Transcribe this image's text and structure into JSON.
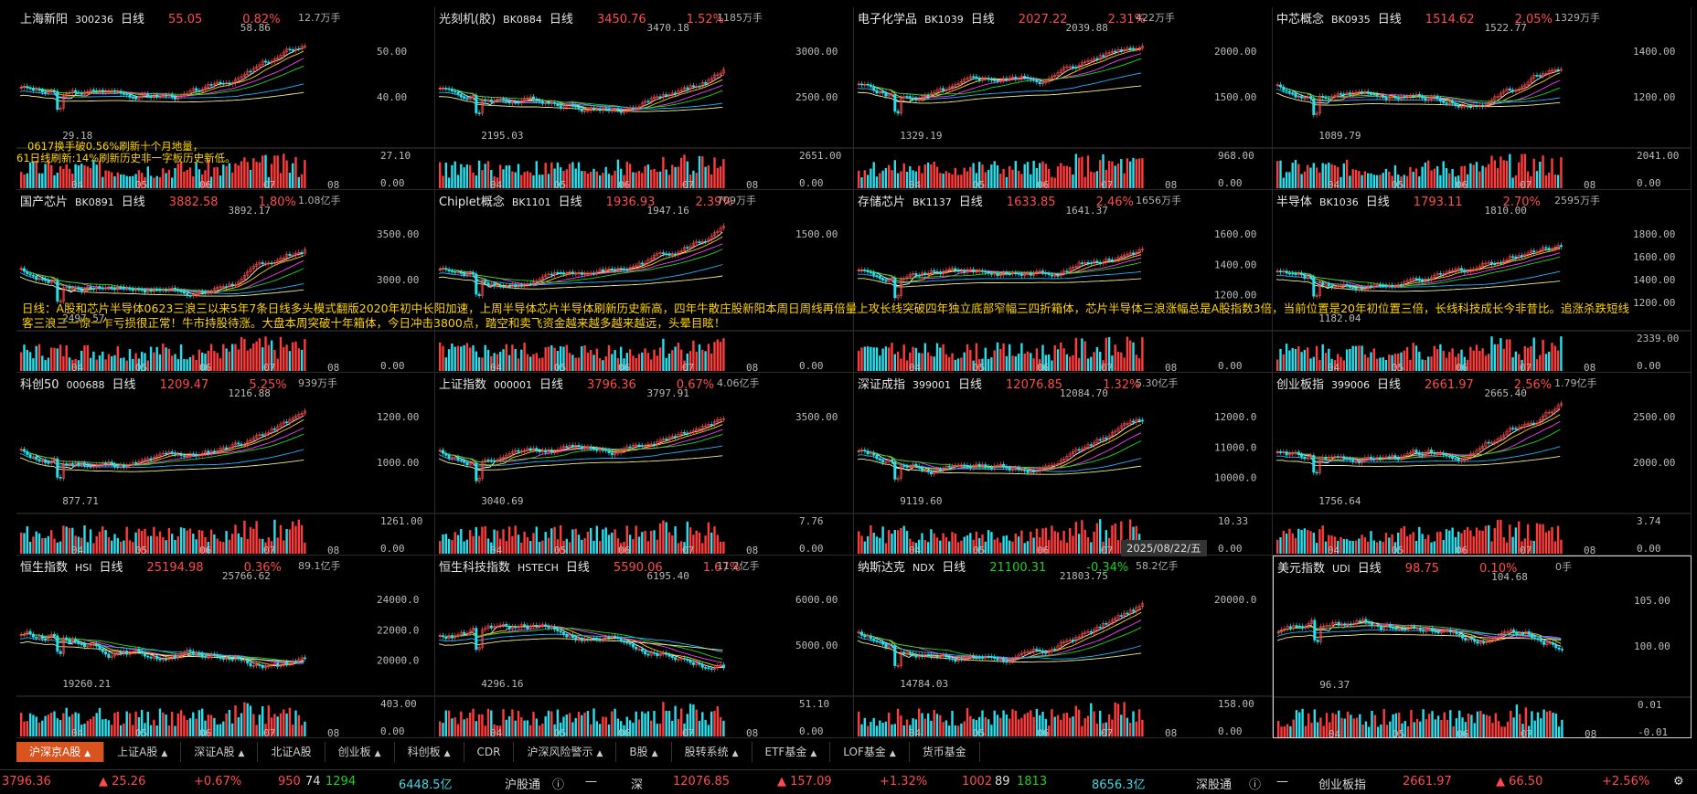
{
  "panels": [
    {
      "name": "上海新阳",
      "code": "300236",
      "period": "日线",
      "price": "55.05",
      "change": "0.82%",
      "vol": "12.7万手",
      "yticks": [
        "50.00",
        "40.00"
      ],
      "vticks": [
        "27.10",
        "0.00"
      ],
      "high_label": "58.86",
      "low_label": "29.18",
      "up": true
    },
    {
      "name": "光刻机(胶)",
      "code": "BK0884",
      "period": "日线",
      "price": "3450.76",
      "change": "1.52%",
      "vol": "1185万手",
      "yticks": [
        "3000.00",
        "2500.00"
      ],
      "vticks": [
        "2651.00",
        "0.00"
      ],
      "high_label": "3470.18",
      "low_label": "2195.03",
      "up": true
    },
    {
      "name": "电子化学品",
      "code": "BK1039",
      "period": "日线",
      "price": "2027.22",
      "change": "2.31%",
      "vol": "422万手",
      "yticks": [
        "2000.00",
        "1500.00"
      ],
      "vticks": [
        "968.00",
        "0.00"
      ],
      "high_label": "2039.88",
      "low_label": "1329.19",
      "up": true
    },
    {
      "name": "中芯概念",
      "code": "BK0935",
      "period": "日线",
      "price": "1514.62",
      "change": "2.05%",
      "vol": "1329万手",
      "yticks": [
        "1400.00",
        "1200.00"
      ],
      "vticks": [
        "2041.00",
        "0.00"
      ],
      "high_label": "1522.77",
      "low_label": "1089.79",
      "up": true
    },
    {
      "name": "国产芯片",
      "code": "BK0891",
      "period": "日线",
      "price": "3882.58",
      "change": "1.80%",
      "vol": "1.08亿手",
      "yticks": [
        "3500.00",
        "3000.00"
      ],
      "vticks": [
        "",
        "0.00"
      ],
      "high_label": "3892.17",
      "low_label": "2497.57",
      "up": true
    },
    {
      "name": "Chiplet概念",
      "code": "BK1101",
      "period": "日线",
      "price": "1936.93",
      "change": "2.39%",
      "vol": "709万手",
      "yticks": [
        "1500.00"
      ],
      "vticks": [
        "",
        "0.00"
      ],
      "high_label": "1947.16",
      "low_label": "",
      "up": true
    },
    {
      "name": "存储芯片",
      "code": "BK1137",
      "period": "日线",
      "price": "1633.85",
      "change": "2.46%",
      "vol": "1656万手",
      "yticks": [
        "1600.00",
        "1400.00",
        "1200.00"
      ],
      "vticks": [
        "",
        "0.00"
      ],
      "high_label": "1641.37",
      "low_label": "",
      "up": true
    },
    {
      "name": "半导体",
      "code": "BK1036",
      "period": "日线",
      "price": "1793.11",
      "change": "2.70%",
      "vol": "2595万手",
      "yticks": [
        "1800.00",
        "1600.00",
        "1400.00",
        "1200.00"
      ],
      "vticks": [
        "2339.00",
        "0.00"
      ],
      "high_label": "1810.00",
      "low_label": "1182.04",
      "up": true
    },
    {
      "name": "科创50",
      "code": "000688",
      "period": "日线",
      "price": "1209.47",
      "change": "5.25%",
      "vol": "939万手",
      "yticks": [
        "1200.00",
        "1000.00"
      ],
      "vticks": [
        "1261.00",
        "0.00"
      ],
      "high_label": "1216.88",
      "low_label": "877.71",
      "up": true
    },
    {
      "name": "上证指数",
      "code": "000001",
      "period": "日线",
      "price": "3796.36",
      "change": "0.67%",
      "vol": "4.06亿手",
      "yticks": [
        "3500.00"
      ],
      "vticks": [
        "7.76",
        "0.00"
      ],
      "high_label": "3797.91",
      "low_label": "3040.69",
      "up": true
    },
    {
      "name": "深证成指",
      "code": "399001",
      "period": "日线",
      "price": "12076.85",
      "change": "1.32%",
      "vol": "5.30亿手",
      "yticks": [
        "12000.0",
        "11000.0",
        "10000.0"
      ],
      "vticks": [
        "10.33",
        "0.00"
      ],
      "high_label": "12084.70",
      "low_label": "9119.60",
      "up": true
    },
    {
      "name": "创业板指",
      "code": "399006",
      "period": "日线",
      "price": "2661.97",
      "change": "2.56%",
      "vol": "1.79亿手",
      "yticks": [
        "2500.00",
        "2000.00"
      ],
      "vticks": [
        "3.74",
        "0.00"
      ],
      "high_label": "2665.40",
      "low_label": "1756.64",
      "up": true
    },
    {
      "name": "恒生指数",
      "code": "HSI",
      "period": "日线",
      "price": "25194.98",
      "change": "0.36%",
      "vol": "89.1亿手",
      "yticks": [
        "24000.0",
        "22000.0",
        "20000.0"
      ],
      "vticks": [
        "403.00",
        "0.00"
      ],
      "high_label": "25766.62",
      "low_label": "19260.21",
      "up": true
    },
    {
      "name": "恒生科技指数",
      "code": "HSTECH",
      "period": "日线",
      "price": "5590.06",
      "change": "1.67%",
      "vol": "11.2亿手",
      "yticks": [
        "6000.00",
        "5000.00"
      ],
      "vticks": [
        "51.10",
        "0.00"
      ],
      "high_label": "6195.40",
      "low_label": "4296.16",
      "up": true
    },
    {
      "name": "纳斯达克",
      "code": "NDX",
      "period": "日线",
      "price": "21100.31",
      "change": "-0.34%",
      "vol": "58.2亿手",
      "yticks": [
        "20000.0"
      ],
      "vticks": [
        "158.00",
        "0.00"
      ],
      "high_label": "21803.75",
      "low_label": "14784.03",
      "up": false
    },
    {
      "name": "美元指数",
      "code": "UDI",
      "period": "日线",
      "price": "98.75",
      "change": "0.10%",
      "vol": "0手",
      "yticks": [
        "105.00",
        "100.00"
      ],
      "vticks": [
        "0.01",
        "-0.01"
      ],
      "high_label": "104.68",
      "low_label": "96.37",
      "up": true
    }
  ],
  "month_labels": [
    "04",
    "05",
    "06",
    "07",
    "08"
  ],
  "notes": {
    "n1": "0617换手破0.56%刷新十个月地量，",
    "n2": "61日线刷新:14%刷新历史非一字板历史新低。",
    "big": "日线：A股和芯片半导体0623三浪三以来5年7条日线多头模式翻版2020年初中长阳加速，上周半导体芯片半导体刷新历史新高，四年牛散庄股新阳本周日周线再倍量上攻长线突破四年独立底部窄幅三四折箱体，芯片半导体三浪涨幅总是A股指数3倍，当前位置是20年初位置三倍，长线科技成长今非昔比。追涨杀跌短线客三浪三一惊一乍亏损很正常！牛市持股待涨。大盘本周突破十年箱体，今日冲击3800点，踏空和卖飞资金越来越多越来越远，头晕目眩！",
    "date": "2025/08/22/五"
  },
  "tabs": [
    {
      "label": "沪深京A股",
      "caret": true,
      "active": true
    },
    {
      "label": "上证A股",
      "caret": true
    },
    {
      "label": "深证A股",
      "caret": true
    },
    {
      "label": "北证A股",
      "caret": false
    },
    {
      "label": "创业板",
      "caret": true
    },
    {
      "label": "科创板",
      "caret": true
    },
    {
      "label": "CDR",
      "caret": false
    },
    {
      "label": "沪深风险警示",
      "caret": true
    },
    {
      "label": "B股",
      "caret": true
    },
    {
      "label": "股转系统",
      "caret": true
    },
    {
      "label": "ETF基金",
      "caret": true
    },
    {
      "label": "LOF基金",
      "caret": true
    },
    {
      "label": "货币基金",
      "caret": false
    }
  ],
  "status": {
    "sh_value": "3796.36",
    "sh_delta": "▲ 25.26",
    "sh_pct": "+0.67%",
    "sh_up": "950",
    "sh_flat": "74",
    "sh_down": "1294",
    "sh_amount": "6448.5亿",
    "hgt_label": "沪股通",
    "hgt_value": "—",
    "sz_label": "深",
    "sz_value": "12076.85",
    "sz_delta": "▲ 157.09",
    "sz_pct": "+1.32%",
    "sz_up": "1002",
    "sz_flat": "89",
    "sz_down": "1813",
    "sz_amount": "8656.3亿",
    "sgt_label": "深股通",
    "sgt_value": "—",
    "cy_label": "创业板指",
    "cy_value": "2661.97",
    "cy_delta": "▲ 66.50",
    "cy_pct": "+2.56%"
  },
  "colors": {
    "up": "#ff4b4b",
    "down": "#1fd11f",
    "vol_up": "#ff3b3b",
    "vol_down": "#27e0ee",
    "ma": [
      "#ffffff",
      "#ffd400",
      "#ff3cff",
      "#18e018",
      "#1ab6ff",
      "#f5f08a"
    ]
  }
}
